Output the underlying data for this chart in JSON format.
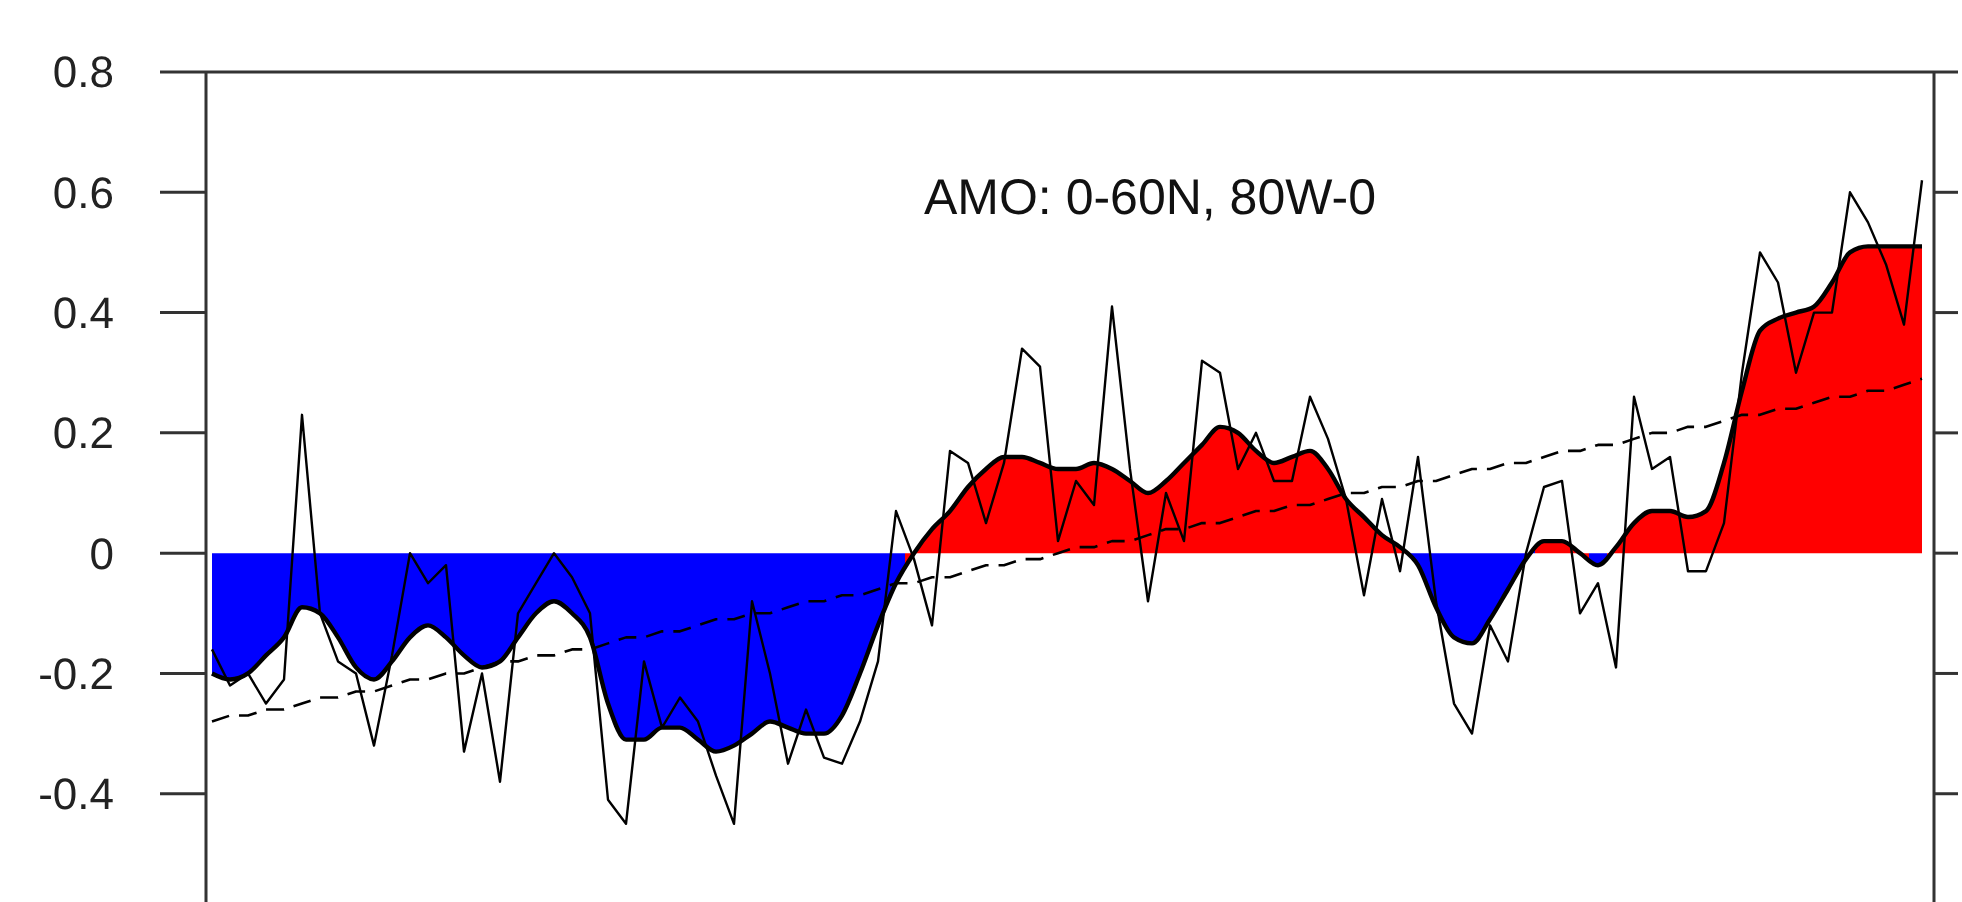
{
  "chart_data": {
    "type": "line",
    "title": "AMO: 0-60N, 80W-0",
    "categories": [
      null,
      null,
      null,
      null,
      null,
      null,
      null,
      null,
      null,
      null,
      null,
      null,
      null,
      null,
      null,
      null,
      null,
      null,
      null,
      null,
      null,
      null,
      null,
      null,
      null,
      null,
      null,
      null,
      null,
      null,
      null,
      null,
      null,
      null,
      null,
      null,
      null,
      null,
      null,
      null,
      null,
      null,
      null,
      null,
      null,
      null,
      null,
      null,
      null,
      null,
      null,
      null,
      null,
      null,
      null,
      null,
      null,
      null,
      null,
      null,
      null,
      null,
      null,
      null,
      null,
      null,
      null,
      null,
      null,
      null,
      null,
      null,
      null,
      null,
      null,
      null,
      null,
      null,
      null,
      null,
      null,
      null,
      null,
      null,
      null,
      null,
      null,
      null,
      null,
      null,
      null,
      null,
      null,
      null,
      null,
      null
    ],
    "series": [
      {
        "type": "area",
        "color": "#000000",
        "colors": [
          "#0000ff",
          "#0000ff",
          "#0000ff",
          "#0000ff",
          "#0000ff",
          "#0000ff",
          "#0000ff",
          "#0000ff",
          "#0000ff",
          "#0000ff",
          "#0000ff",
          "#0000ff",
          "#0000ff",
          "#0000ff",
          "#0000ff",
          "#0000ff",
          "#0000ff",
          "#0000ff",
          "#0000ff",
          "#0000ff",
          "#0000ff",
          "#0000ff",
          "#0000ff",
          "#0000ff",
          "#0000ff",
          "#0000ff",
          "#0000ff",
          "#0000ff",
          "#0000ff",
          "#0000ff",
          "#0000ff",
          "#0000ff",
          "#0000ff",
          "#0000ff",
          "#0000ff",
          "#0000ff",
          "#0000ff",
          "#0000ff",
          "#0000ff",
          "#ff0000",
          "#ff0000",
          "#ff0000",
          "#ff0000",
          "#ff0000",
          "#ff0000",
          "#ff0000",
          "#ff0000",
          "#ff0000",
          "#ff0000",
          "#ff0000",
          "#ff0000",
          "#ff0000",
          "#ff0000",
          "#ff0000",
          "#ff0000",
          "#ff0000",
          "#ff0000",
          "#ff0000",
          "#ff0000",
          "#ff0000",
          "#ff0000",
          "#ff0000",
          "#ff0000",
          "#ff0000",
          "#ff0000",
          "#ff0000",
          "#ff0000",
          "#0000ff",
          "#0000ff",
          "#0000ff",
          "#0000ff",
          "#0000ff",
          "#0000ff",
          "#0000ff",
          "#ff0000",
          "#ff0000",
          "#ff0000",
          "#0000ff",
          "#ff0000",
          "#ff0000",
          "#ff0000",
          "#ff0000",
          "#ff0000",
          "#ff0000",
          "#ff0000",
          "#ff0000",
          "#ff0000",
          "#ff0000",
          "#ff0000",
          "#ff0000",
          "#ff0000",
          "#ff0000",
          "#ff0000",
          "#ff0000",
          "#ff0000",
          "#ff0000"
        ],
        "values": [
          -0.2,
          -0.21,
          -0.2,
          -0.17,
          -0.14,
          -0.09,
          -0.1,
          -0.14,
          -0.19,
          -0.21,
          -0.18,
          -0.14,
          -0.12,
          -0.14,
          -0.17,
          -0.19,
          -0.18,
          -0.14,
          -0.1,
          -0.08,
          -0.1,
          -0.14,
          -0.25,
          -0.31,
          -0.31,
          -0.29,
          -0.29,
          -0.31,
          -0.33,
          -0.32,
          -0.3,
          -0.28,
          -0.29,
          -0.3,
          -0.3,
          -0.27,
          -0.2,
          -0.12,
          -0.05,
          0.0,
          0.04,
          0.07,
          0.11,
          0.14,
          0.16,
          0.16,
          0.15,
          0.14,
          0.14,
          0.15,
          0.14,
          0.12,
          0.1,
          0.12,
          0.15,
          0.18,
          0.21,
          0.2,
          0.17,
          0.15,
          0.16,
          0.17,
          0.14,
          0.09,
          0.06,
          0.03,
          0.01,
          -0.02,
          -0.09,
          -0.14,
          -0.15,
          -0.11,
          -0.06,
          -0.01,
          0.02,
          0.02,
          0.0,
          -0.02,
          0.01,
          0.05,
          0.07,
          0.07,
          0.06,
          0.07,
          0.15,
          0.27,
          0.37,
          0.39,
          0.4,
          0.41,
          0.45,
          0.5,
          0.51,
          0.51,
          0.51,
          0.51
        ]
      },
      {
        "color": "#000000",
        "values": [
          -0.16,
          -0.22,
          -0.2,
          -0.25,
          -0.21,
          0.23,
          -0.1,
          -0.18,
          -0.2,
          -0.32,
          -0.17,
          0.0,
          -0.05,
          -0.02,
          -0.33,
          -0.2,
          -0.38,
          -0.1,
          -0.05,
          0.0,
          -0.04,
          -0.1,
          -0.41,
          -0.45,
          -0.18,
          -0.29,
          -0.24,
          -0.28,
          -0.37,
          -0.45,
          -0.08,
          -0.2,
          -0.35,
          -0.26,
          -0.34,
          -0.35,
          -0.28,
          -0.18,
          0.07,
          -0.01,
          -0.12,
          0.17,
          0.15,
          0.05,
          0.15,
          0.34,
          0.31,
          0.02,
          0.12,
          0.08,
          0.41,
          0.14,
          -0.08,
          0.1,
          0.02,
          0.32,
          0.3,
          0.14,
          0.2,
          0.12,
          0.12,
          0.26,
          0.19,
          0.09,
          -0.07,
          0.09,
          -0.03,
          0.16,
          -0.08,
          -0.25,
          -0.3,
          -0.12,
          -0.18,
          0.0,
          0.11,
          0.12,
          -0.1,
          -0.05,
          -0.19,
          0.26,
          0.14,
          0.16,
          -0.03,
          -0.03,
          0.05,
          0.3,
          0.5,
          0.45,
          0.3,
          0.4,
          0.4,
          0.6,
          0.55,
          0.48,
          0.38,
          0.62
        ]
      },
      {
        "type": "line",
        "color": "#000000",
        "line_style": "dashed",
        "values": [
          -0.28,
          -0.27,
          -0.27,
          -0.26,
          -0.26,
          -0.25,
          -0.24,
          -0.24,
          -0.23,
          -0.23,
          -0.22,
          -0.21,
          -0.21,
          -0.2,
          -0.2,
          -0.19,
          -0.18,
          -0.18,
          -0.17,
          -0.17,
          -0.16,
          -0.16,
          -0.15,
          -0.14,
          -0.14,
          -0.13,
          -0.13,
          -0.12,
          -0.11,
          -0.11,
          -0.1,
          -0.1,
          -0.09,
          -0.08,
          -0.08,
          -0.07,
          -0.07,
          -0.06,
          -0.05,
          -0.05,
          -0.04,
          -0.04,
          -0.03,
          -0.02,
          -0.02,
          -0.01,
          -0.01,
          0.0,
          0.01,
          0.01,
          0.02,
          0.02,
          0.03,
          0.04,
          0.04,
          0.05,
          0.05,
          0.06,
          0.07,
          0.07,
          0.08,
          0.08,
          0.09,
          0.1,
          0.1,
          0.11,
          0.11,
          0.12,
          0.12,
          0.13,
          0.14,
          0.14,
          0.15,
          0.15,
          0.16,
          0.17,
          0.17,
          0.18,
          0.18,
          0.19,
          0.2,
          0.2,
          0.21,
          0.21,
          0.22,
          0.23,
          0.23,
          0.24,
          0.24,
          0.25,
          0.26,
          0.26,
          0.27,
          0.27,
          0.28,
          0.29
        ]
      }
    ],
    "ylim": [
      -0.58,
      0.8
    ],
    "yticks": [
      {
        "value": 0.8,
        "label": "0.8"
      },
      {
        "value": 0.6,
        "label": "0.6"
      },
      {
        "value": 0.4,
        "label": "0.4"
      },
      {
        "value": 0.2,
        "label": "0.2"
      },
      0,
      {
        "value": -0.2,
        "label": "-0.2"
      },
      {
        "value": -0.4,
        "label": "-0.4"
      }
    ],
    "tick_labels": "y",
    "grid": false
  }
}
